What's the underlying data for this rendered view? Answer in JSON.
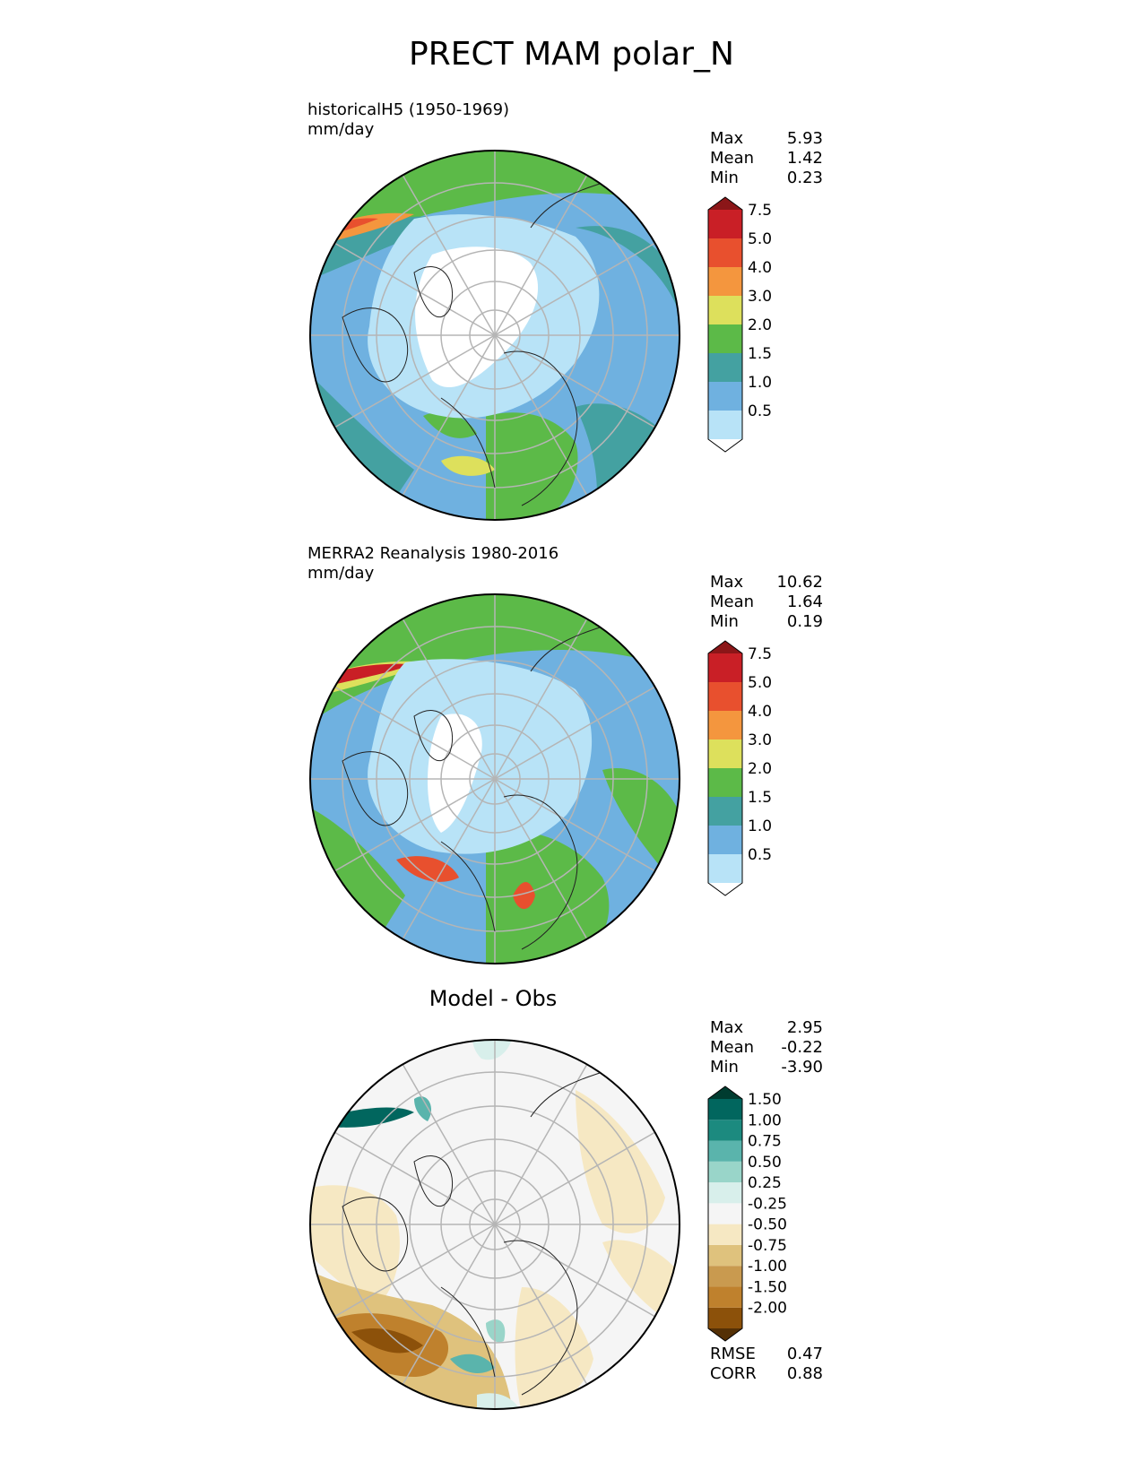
{
  "figure_title": "PRECT MAM polar_N",
  "chart_data": [
    {
      "type": "heatmap",
      "projection": "north polar stereographic",
      "label_line1": "historicalH5 (1950-1969)",
      "label_line2": "mm/day",
      "stats": [
        {
          "k": "Max",
          "v": "5.93"
        },
        {
          "k": "Mean",
          "v": "1.42"
        },
        {
          "k": "Min",
          "v": "0.23"
        }
      ],
      "levels": [
        "0.5",
        "1.0",
        "1.5",
        "2.0",
        "3.0",
        "4.0",
        "5.0",
        "7.5",
        "10.0"
      ],
      "colors": [
        "#ffffff",
        "#b8e3f7",
        "#6fb1e0",
        "#44a1a1",
        "#5cba48",
        "#dde05c",
        "#f4963e",
        "#e8502e",
        "#c91f26",
        "#8b1618"
      ]
    },
    {
      "type": "heatmap",
      "projection": "north polar stereographic",
      "label_line1": "MERRA2 Reanalysis 1980-2016",
      "label_line2": "mm/day",
      "stats": [
        {
          "k": "Max",
          "v": "10.62"
        },
        {
          "k": "Mean",
          "v": "1.64"
        },
        {
          "k": "Min",
          "v": "0.19"
        }
      ],
      "levels": [
        "0.5",
        "1.0",
        "1.5",
        "2.0",
        "3.0",
        "4.0",
        "5.0",
        "7.5",
        "10.0"
      ],
      "colors": [
        "#ffffff",
        "#b8e3f7",
        "#6fb1e0",
        "#44a1a1",
        "#5cba48",
        "#dde05c",
        "#f4963e",
        "#e8502e",
        "#c91f26",
        "#8b1618"
      ]
    },
    {
      "type": "heatmap",
      "projection": "north polar stereographic",
      "title": "Model - Obs",
      "stats": [
        {
          "k": "Max",
          "v": "2.95"
        },
        {
          "k": "Mean",
          "v": "-0.22"
        },
        {
          "k": "Min",
          "v": "-3.90"
        }
      ],
      "levels": [
        "-2.00",
        "-1.50",
        "-1.00",
        "-0.75",
        "-0.50",
        "-0.25",
        "0.25",
        "0.50",
        "0.75",
        "1.00",
        "1.50",
        "2.00"
      ],
      "colors": [
        "#543005",
        "#8c510a",
        "#bf812d",
        "#c99a4f",
        "#dfc27d",
        "#f6e8c3",
        "#f5f5f5",
        "#d8efeb",
        "#99d5c9",
        "#5ab4ac",
        "#1c8a7f",
        "#01665e",
        "#003c30"
      ],
      "metrics": [
        {
          "k": "RMSE",
          "v": "0.47"
        },
        {
          "k": "CORR",
          "v": "0.88"
        }
      ]
    }
  ]
}
